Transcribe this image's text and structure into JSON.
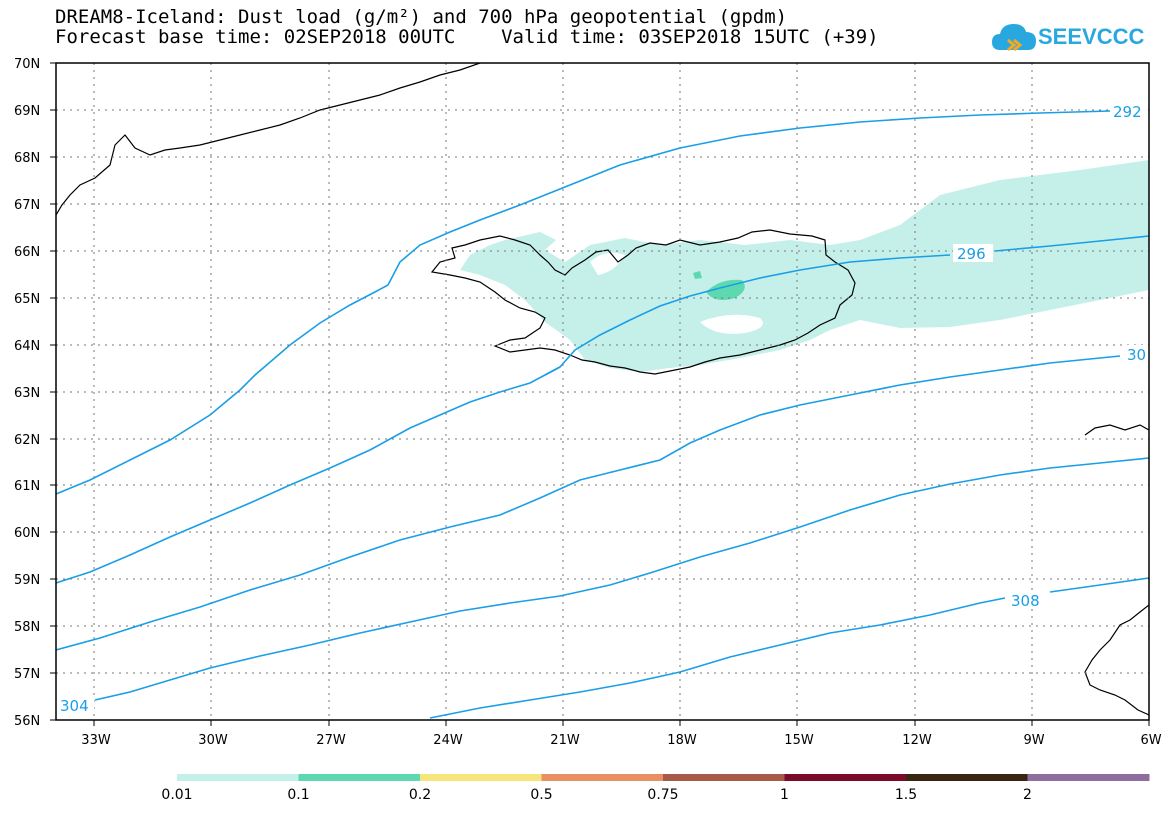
{
  "title": {
    "line1": "DREAM8-Iceland: Dust load (g/m²) and 700 hPa geopotential (gpdm)",
    "line2": "Forecast base time: 02SEP2018 00UTC    Valid time: 03SEP2018 15UTC (+39)"
  },
  "logo": {
    "text": "SEEVCCC",
    "icon": "cloud-icon",
    "color": "#29a8e0"
  },
  "map": {
    "lat_labels": [
      "70N",
      "69N",
      "68N",
      "67N",
      "66N",
      "65N",
      "64N",
      "63N",
      "62N",
      "61N",
      "60N",
      "59N",
      "58N",
      "57N",
      "56N"
    ],
    "lon_labels": [
      "33W",
      "30W",
      "27W",
      "24W",
      "21W",
      "18W",
      "15W",
      "12W",
      "9W",
      "6W"
    ],
    "contour_color": "#1a9ee6",
    "contour_labels": [
      "292",
      "296",
      "30",
      "304",
      "308"
    ],
    "dust_colors": {
      "low": "#c5f0ea",
      "mid": "#5ed8b0"
    }
  },
  "colorbar": {
    "labels": [
      "0.01",
      "0.1",
      "0.2",
      "0.5",
      "0.75",
      "1",
      "1.5",
      "2"
    ],
    "colors": [
      "#c5f0ea",
      "#5ed8b0",
      "#f6e57a",
      "#e99062",
      "#a85a4a",
      "#7a0c2a",
      "#3a2412",
      "#8e6e9e"
    ]
  }
}
